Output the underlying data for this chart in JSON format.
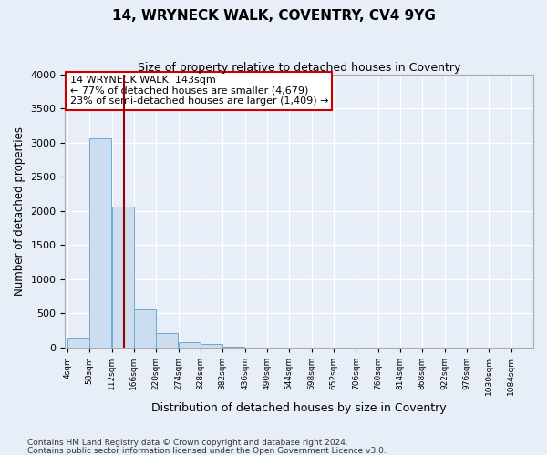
{
  "title": "14, WRYNECK WALK, COVENTRY, CV4 9YG",
  "subtitle": "Size of property relative to detached houses in Coventry",
  "xlabel": "Distribution of detached houses by size in Coventry",
  "ylabel": "Number of detached properties",
  "bar_color": "#cdddf0",
  "bar_edge_color": "#6aaad4",
  "bin_edges": [
    4,
    58,
    112,
    166,
    220,
    274,
    328,
    382,
    436,
    490,
    544,
    598,
    652,
    706,
    760,
    814,
    868,
    922,
    976,
    1030,
    1084
  ],
  "bar_heights": [
    150,
    3060,
    2060,
    560,
    210,
    80,
    50,
    10,
    0,
    0,
    0,
    0,
    0,
    0,
    0,
    0,
    0,
    0,
    0,
    0
  ],
  "property_size": 143,
  "vline_color": "#990000",
  "annotation_text": "14 WRYNECK WALK: 143sqm\n← 77% of detached houses are smaller (4,679)\n23% of semi-detached houses are larger (1,409) →",
  "annotation_box_color": "#ffffff",
  "annotation_box_edge_color": "#cc0000",
  "ylim": [
    0,
    4000
  ],
  "yticks": [
    0,
    500,
    1000,
    1500,
    2000,
    2500,
    3000,
    3500,
    4000
  ],
  "tick_labels": [
    "4sqm",
    "58sqm",
    "112sqm",
    "166sqm",
    "220sqm",
    "274sqm",
    "328sqm",
    "382sqm",
    "436sqm",
    "490sqm",
    "544sqm",
    "598sqm",
    "652sqm",
    "706sqm",
    "760sqm",
    "814sqm",
    "868sqm",
    "922sqm",
    "976sqm",
    "1030sqm",
    "1084sqm"
  ],
  "footer_line1": "Contains HM Land Registry data © Crown copyright and database right 2024.",
  "footer_line2": "Contains public sector information licensed under the Open Government Licence v3.0.",
  "background_color": "#e8eef8",
  "plot_bg_color": "#e8eef8",
  "grid_color": "#ffffff"
}
